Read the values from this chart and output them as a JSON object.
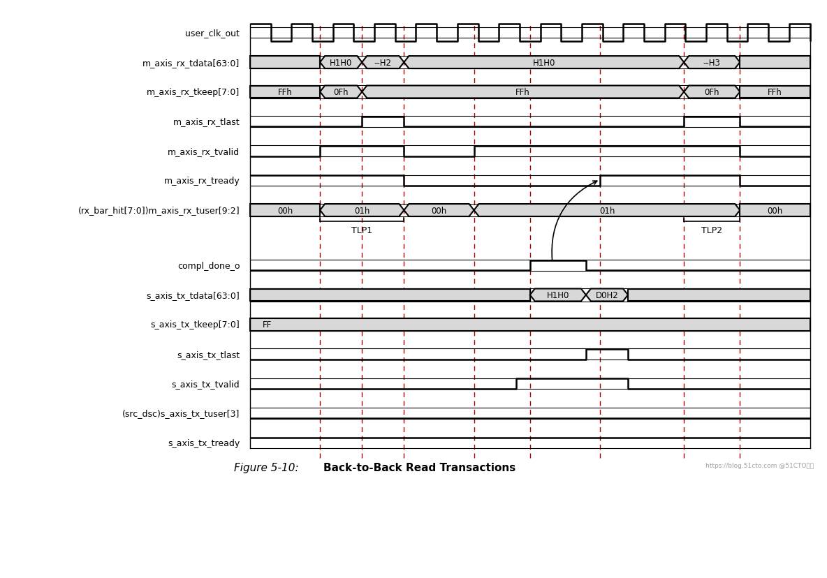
{
  "title": "Figure 5-10:",
  "title_bold": "  Back-to-Back Read Transactions",
  "watermark": "https://blog.51cto.com @51CTO博客",
  "background_color": "#ffffff",
  "gray_bg": "#d8d8d8",
  "signal_names": [
    "user_clk_out",
    "m_axis_rx_tdata[63:0]",
    "m_axis_rx_tkeep[7:0]",
    "m_axis_rx_tlast",
    "m_axis_rx_tvalid",
    "m_axis_rx_tready",
    "(rx_bar_hit[7:0])m_axis_rx_tuser[9:2]",
    "compl_done_o",
    "s_axis_tx_tdata[63:0]",
    "s_axis_tx_tkeep[7:0]",
    "s_axis_tx_tlast",
    "s_axis_tx_tvalid",
    "(src_dsc)s_axis_tx_tuser[3]",
    "s_axis_tx_tready"
  ],
  "fig_width": 11.84,
  "fig_height": 8.29,
  "dpi": 100
}
